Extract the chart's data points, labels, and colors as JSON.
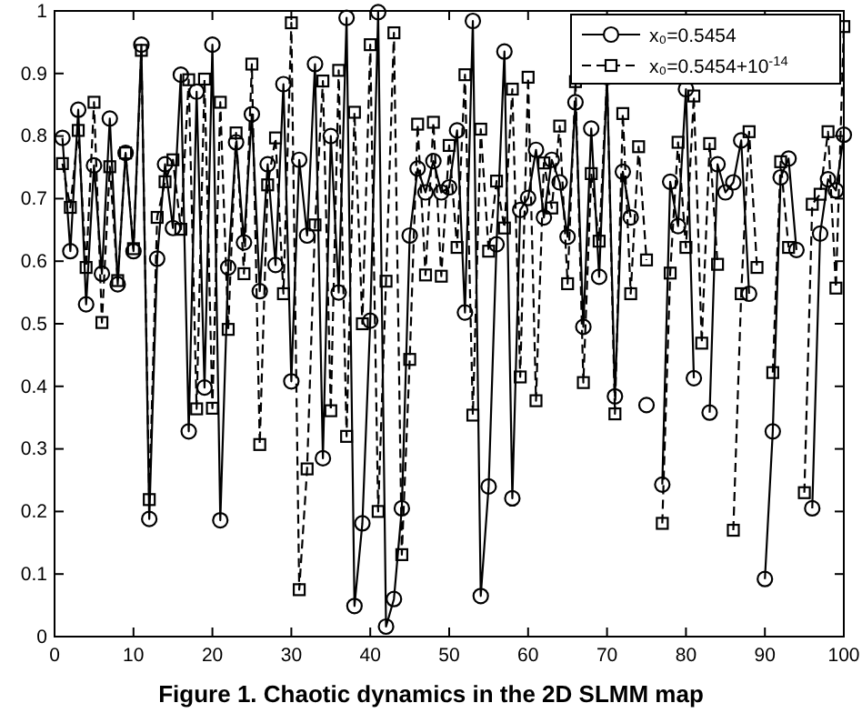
{
  "chart_data": {
    "type": "line",
    "title": "Figure 1. Chaotic dynamics in the 2D SLMM map",
    "x": [
      1,
      2,
      3,
      4,
      5,
      6,
      7,
      8,
      9,
      10,
      11,
      12,
      13,
      14,
      15,
      16,
      17,
      18,
      19,
      20,
      21,
      22,
      23,
      24,
      25,
      26,
      27,
      28,
      29,
      30,
      31,
      32,
      33,
      34,
      35,
      36,
      37,
      38,
      39,
      40,
      41,
      42,
      43,
      44,
      45,
      46,
      47,
      48,
      49,
      50,
      51,
      52,
      53,
      54,
      55,
      56,
      57,
      58,
      59,
      60,
      61,
      62,
      63,
      64,
      65,
      66,
      67,
      68,
      69,
      70,
      71,
      72,
      73,
      74,
      75,
      76,
      77,
      78,
      79,
      80,
      81,
      82,
      83,
      84,
      85,
      86,
      87,
      88,
      89,
      90,
      91,
      92,
      93,
      94,
      95,
      96,
      97,
      98,
      99,
      100
    ],
    "series": [
      {
        "name": "x₀=0.5454",
        "color": "#000000",
        "marker": "circle",
        "line_style": "solid",
        "values": [
          0.797,
          0.616,
          0.842,
          0.531,
          0.753,
          0.58,
          0.828,
          0.563,
          0.773,
          0.616,
          0.946,
          0.188,
          0.604,
          0.755,
          0.653,
          0.898,
          0.328,
          0.871,
          0.398,
          0.946,
          0.186,
          0.59,
          0.79,
          0.63,
          0.835,
          0.552,
          0.755,
          0.594,
          0.883,
          0.408,
          0.762,
          0.641,
          0.915,
          0.285,
          0.8,
          0.55,
          0.989,
          0.049,
          0.181,
          0.505,
          0.998,
          0.016,
          0.06,
          0.205,
          0.641,
          0.748,
          0.71,
          0.76,
          0.71,
          0.718,
          0.809,
          0.518,
          0.984,
          0.065,
          0.24,
          0.627,
          0.935,
          0.221,
          0.682,
          0.701,
          0.778,
          0.67,
          0.762,
          0.726,
          0.639,
          0.854,
          0.495,
          0.812,
          0.575,
          0.894,
          0.384,
          0.743,
          0.67,
          null,
          0.37,
          null,
          0.243,
          0.727,
          0.656,
          0.875,
          0.413,
          null,
          0.358,
          0.755,
          0.71,
          0.726,
          0.793,
          0.548,
          null,
          0.092,
          0.328,
          0.734,
          0.764,
          0.618,
          null,
          0.205,
          0.644,
          0.731,
          0.713,
          0.802
        ]
      },
      {
        "name": "x₀=0.5454+10$^{-14}$",
        "color": "#000000",
        "marker": "square",
        "line_style": "dashed",
        "values": [
          0.756,
          0.686,
          0.809,
          0.59,
          0.854,
          0.502,
          0.751,
          0.569,
          0.773,
          0.62,
          0.937,
          0.219,
          0.67,
          0.727,
          0.762,
          0.651,
          0.89,
          0.364,
          0.891,
          0.365,
          0.854,
          0.491,
          0.805,
          0.58,
          0.915,
          0.307,
          0.722,
          0.797,
          0.548,
          0.981,
          0.075,
          0.268,
          0.658,
          0.888,
          0.361,
          0.905,
          0.32,
          0.838,
          0.5,
          0.946,
          0.2,
          0.568,
          0.965,
          0.131,
          0.443,
          0.819,
          0.578,
          0.822,
          0.576,
          0.785,
          0.622,
          0.898,
          0.354,
          0.811,
          0.616,
          0.728,
          0.653,
          0.875,
          0.415,
          0.894,
          0.377,
          0.757,
          0.685,
          0.816,
          0.564,
          0.887,
          0.406,
          0.74,
          0.632,
          0.894,
          0.356,
          0.836,
          0.548,
          0.783,
          0.602,
          null,
          0.181,
          0.581,
          0.79,
          0.622,
          0.864,
          0.469,
          0.788,
          0.595,
          null,
          0.17,
          0.548,
          0.807,
          0.59,
          null,
          0.422,
          0.759,
          0.622,
          null,
          0.23,
          0.691,
          0.707,
          0.807,
          0.557,
          0.975
        ]
      }
    ],
    "xlim": [
      0,
      100
    ],
    "xticks": [
      0,
      10,
      20,
      30,
      40,
      50,
      60,
      70,
      80,
      90,
      100
    ],
    "ylim": [
      0,
      1
    ],
    "yticks": [
      0,
      0.1,
      0.2,
      0.3,
      0.4,
      0.5,
      0.6,
      0.7,
      0.8,
      0.9,
      1
    ],
    "grid": false,
    "legend": "top right"
  }
}
